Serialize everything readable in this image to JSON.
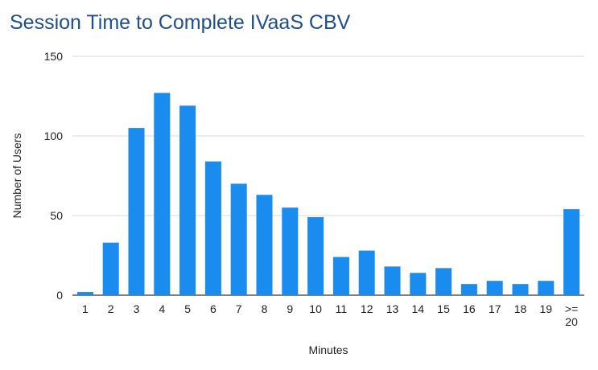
{
  "chart_data": {
    "type": "bar",
    "title": "Session Time to Complete IVaaS CBV",
    "xlabel": "Minutes",
    "ylabel": "Number of Users",
    "categories": [
      "1",
      "2",
      "3",
      "4",
      "5",
      "6",
      "7",
      "8",
      "9",
      "10",
      "11",
      "12",
      "13",
      "14",
      "15",
      "16",
      "17",
      "18",
      "19",
      ">= 20"
    ],
    "values": [
      2,
      33,
      105,
      127,
      119,
      84,
      70,
      63,
      55,
      49,
      24,
      28,
      18,
      14,
      17,
      7,
      9,
      7,
      9,
      54
    ],
    "ylim": [
      0,
      150
    ],
    "yticks": [
      0,
      50,
      100,
      150
    ],
    "grid": true,
    "legend": "none",
    "bar_color": "#1a8cf0",
    "grid_color": "#d9d9d9",
    "title_color": "#1f4e8c"
  }
}
